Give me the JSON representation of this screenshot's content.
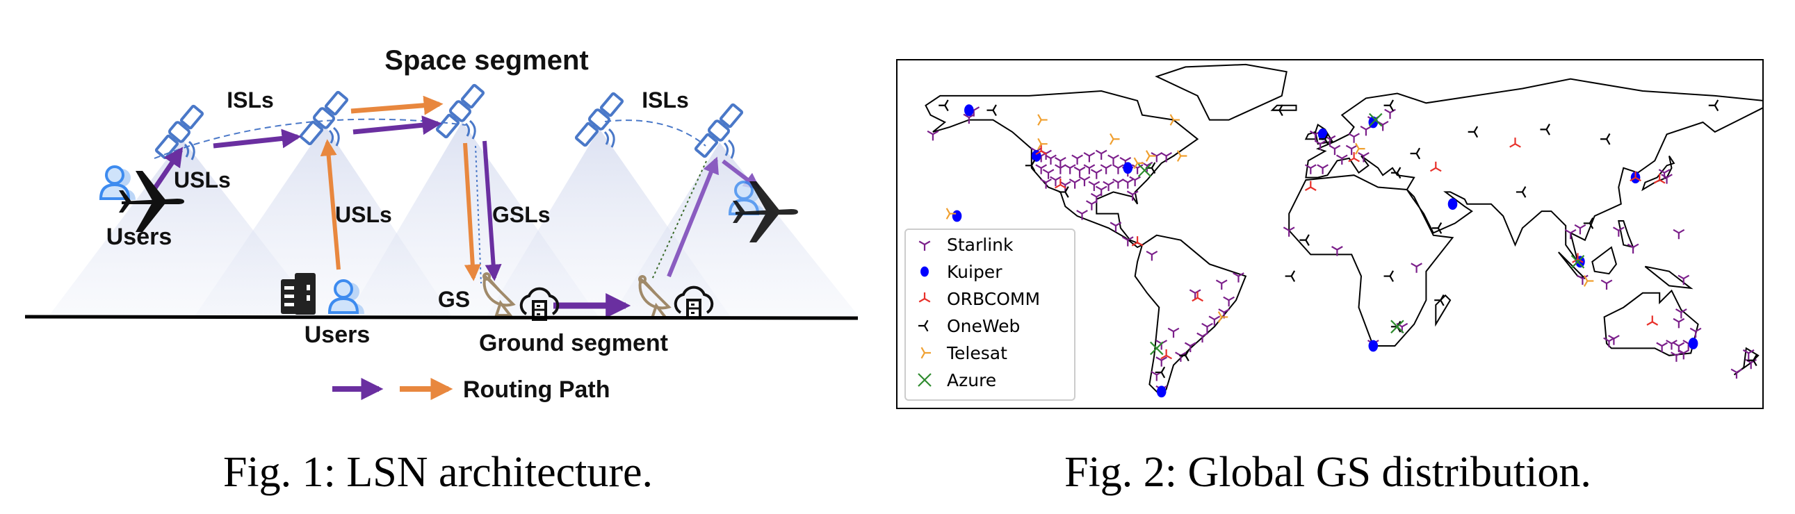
{
  "figure1": {
    "caption": "Fig. 1: LSN architecture.",
    "labels": {
      "space_segment": "Space segment",
      "isls_left": "ISLs",
      "isls_right": "ISLs",
      "usls_left": "USLs",
      "usls_mid": "USLs",
      "gsls": "GSLs",
      "users_left": "Users",
      "users_mid": "Users",
      "gs": "GS",
      "ground_segment": "Ground segment",
      "routing_path": "Routing Path"
    },
    "colors": {
      "purple_path": "#6a2fa0",
      "orange_path": "#e8873e",
      "satellite": "#4a78c8",
      "user_icon": "#5a9be8",
      "dish": "#a08a6a",
      "cone": "#d8def0"
    }
  },
  "figure2": {
    "caption": "Fig. 2: Global GS distribution.",
    "chart_data": {
      "type": "scatter",
      "projection": "plate-carree world map",
      "xlim": [
        -180,
        180
      ],
      "ylim": [
        -60,
        85
      ],
      "legend_position": "lower-left",
      "series": [
        {
          "name": "Starlink",
          "marker": "tri_down",
          "color": "#7b1f8a",
          "points": [
            [
              -122,
              47
            ],
            [
              -120,
              45
            ],
            [
              -118,
              46
            ],
            [
              -116,
              44
            ],
            [
              -112,
              43
            ],
            [
              -105,
              44
            ],
            [
              -100,
              45
            ],
            [
              -95,
              46
            ],
            [
              -90,
              44
            ],
            [
              -85,
              43
            ],
            [
              -120,
              40
            ],
            [
              -117,
              38
            ],
            [
              -112,
              40
            ],
            [
              -108,
              40
            ],
            [
              -104,
              39
            ],
            [
              -100,
              40
            ],
            [
              -97,
              38
            ],
            [
              -93,
              40
            ],
            [
              -88,
              40
            ],
            [
              -84,
              39
            ],
            [
              -80,
              40
            ],
            [
              -76,
              41
            ],
            [
              -118,
              34
            ],
            [
              -114,
              35
            ],
            [
              -110,
              33
            ],
            [
              -106,
              34
            ],
            [
              -102,
              35
            ],
            [
              -98,
              33
            ],
            [
              -95,
              31
            ],
            [
              -92,
              33
            ],
            [
              -88,
              34
            ],
            [
              -84,
              34
            ],
            [
              -81,
              35
            ],
            [
              -82,
              29
            ],
            [
              -97,
              28
            ],
            [
              -99,
              25
            ],
            [
              -103,
              21
            ],
            [
              -89,
              16
            ],
            [
              -84,
              10
            ],
            [
              -150,
              61
            ],
            [
              -148,
              64
            ],
            [
              -165,
              54
            ],
            [
              -72,
              45
            ],
            [
              -68,
              45
            ],
            [
              -74,
              4
            ],
            [
              -56,
              -12
            ],
            [
              -45,
              -8
            ],
            [
              -38,
              -5
            ],
            [
              -42,
              -15
            ],
            [
              -44,
              -20
            ],
            [
              -48,
              -23
            ],
            [
              -51,
              -26
            ],
            [
              -53,
              -30
            ],
            [
              -58,
              -34
            ],
            [
              -62,
              -38
            ],
            [
              -65,
              -28
            ],
            [
              -70,
              -33
            ],
            [
              -70,
              -40
            ],
            [
              -72,
              -46
            ],
            [
              -70,
              -52
            ],
            [
              -4,
              50
            ],
            [
              0,
              52
            ],
            [
              2,
              48
            ],
            [
              -3,
              40
            ],
            [
              -8,
              40
            ],
            [
              5,
              44
            ],
            [
              9,
              48
            ],
            [
              10,
              53
            ],
            [
              15,
              56
            ],
            [
              18,
              60
            ],
            [
              22,
              58
            ],
            [
              25,
              63
            ],
            [
              14,
              45
            ],
            [
              -6,
              54
            ],
            [
              -17,
              14
            ],
            [
              3,
              6
            ],
            [
              18,
              -33
            ],
            [
              30,
              -26
            ],
            [
              36,
              -1
            ],
            [
              104,
              15
            ],
            [
              100,
              13
            ],
            [
              120,
              14
            ],
            [
              126,
              7
            ],
            [
              140,
              36
            ],
            [
              139,
              38
            ],
            [
              105,
              -6
            ],
            [
              115,
              -8
            ],
            [
              147,
              -6
            ],
            [
              116,
              -32
            ],
            [
              118,
              -31
            ],
            [
              138,
              -34
            ],
            [
              142,
              -33
            ],
            [
              145,
              -34
            ],
            [
              147,
              -37
            ],
            [
              149,
              -33
            ],
            [
              152,
              -28
            ],
            [
              146,
              -20
            ],
            [
              145,
              -24
            ],
            [
              144,
              -38
            ],
            [
              175,
              -41
            ],
            [
              174,
              -37
            ],
            [
              169,
              -45
            ],
            [
              145,
              13
            ]
          ]
        },
        {
          "name": "Kuiper",
          "marker": "circle",
          "color": "#0000ff",
          "points": [
            [
              -150,
              64
            ],
            [
              -122,
              45
            ],
            [
              -84,
              40
            ],
            [
              -155,
              20
            ],
            [
              -3,
              54
            ],
            [
              18,
              59
            ],
            [
              51,
              25
            ],
            [
              127,
              36
            ],
            [
              104,
              1
            ],
            [
              18,
              -34
            ],
            [
              151,
              -33
            ],
            [
              -70,
              -53
            ]
          ]
        },
        {
          "name": "ORBCOMM",
          "marker": "tri_up",
          "color": "#e8302a",
          "points": [
            [
              -120,
              47
            ],
            [
              -112,
              33
            ],
            [
              -80,
              9
            ],
            [
              -55,
              -14
            ],
            [
              -68,
              -38
            ],
            [
              10,
              44
            ],
            [
              -8,
              32
            ],
            [
              44,
              40
            ],
            [
              77,
              50
            ],
            [
              137,
              35
            ],
            [
              127,
              36
            ],
            [
              103,
              2
            ],
            [
              134,
              -24
            ]
          ]
        },
        {
          "name": "OneWeb",
          "marker": "tri_left",
          "color": "#000000",
          "points": [
            [
              -160,
              66
            ],
            [
              -140,
              64
            ],
            [
              -124,
              41
            ],
            [
              -110,
              30
            ],
            [
              -74,
              40
            ],
            [
              -60,
              -38
            ],
            [
              -70,
              -45
            ],
            [
              -2,
              52
            ],
            [
              25,
              66
            ],
            [
              28,
              38
            ],
            [
              36,
              46
            ],
            [
              60,
              55
            ],
            [
              90,
              56
            ],
            [
              115,
              52
            ],
            [
              160,
              66
            ],
            [
              80,
              30
            ],
            [
              45,
              15
            ],
            [
              -10,
              10
            ],
            [
              -16,
              -5
            ],
            [
              25,
              -5
            ],
            [
              28,
              -26
            ],
            [
              46,
              -15
            ],
            [
              108,
              17
            ],
            [
              176,
              -40
            ],
            [
              -21,
              64
            ]
          ]
        },
        {
          "name": "Telesat",
          "marker": "tri_right",
          "color": "#f0a030",
          "points": [
            [
              -120,
              60
            ],
            [
              -65,
              60
            ],
            [
              -120,
              50
            ],
            [
              -90,
              52
            ],
            [
              -75,
              45
            ],
            [
              -62,
              45
            ],
            [
              -80,
              42
            ],
            [
              12,
              48
            ],
            [
              -45,
              -22
            ],
            [
              107,
              -7
            ],
            [
              -158,
              21
            ]
          ]
        },
        {
          "name": "Azure",
          "marker": "x",
          "color": "#2e8b2e",
          "points": [
            [
              -77,
              39
            ],
            [
              19,
              60
            ],
            [
              -72,
              -35
            ],
            [
              28,
              -26
            ],
            [
              103,
              1
            ]
          ]
        }
      ]
    }
  }
}
